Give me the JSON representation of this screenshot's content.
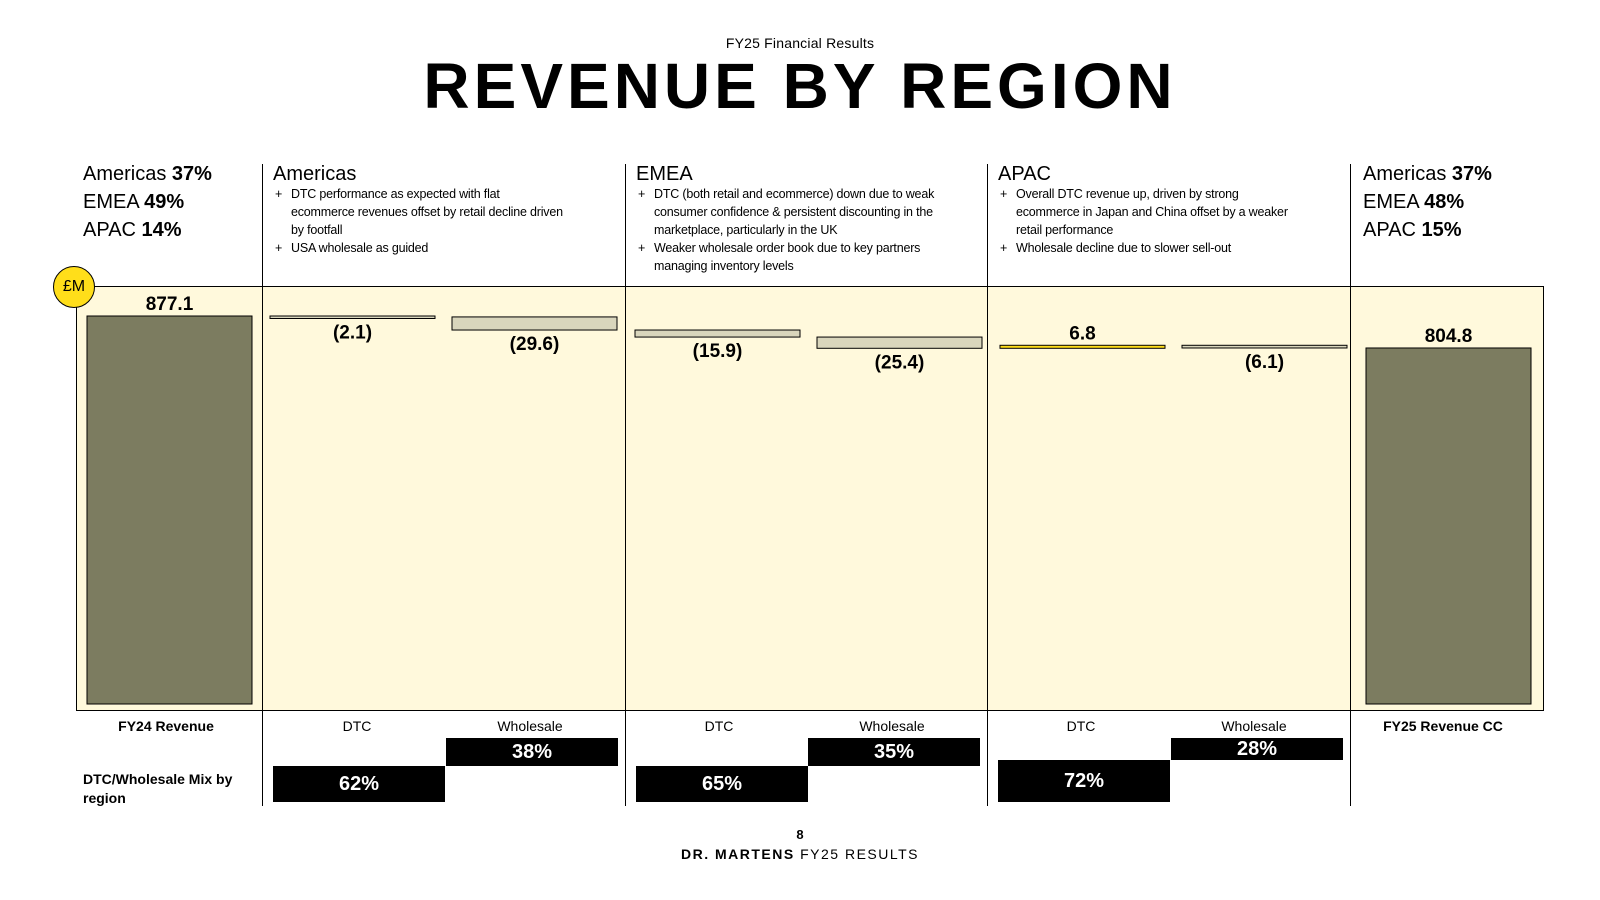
{
  "header": {
    "subtitle": "FY25 Financial Results",
    "title": "REVENUE BY REGION"
  },
  "fy24_mix": [
    {
      "region": "Americas",
      "pct": "37%"
    },
    {
      "region": "EMEA",
      "pct": "49%"
    },
    {
      "region": "APAC",
      "pct": "14%"
    }
  ],
  "fy25_mix": [
    {
      "region": "Americas",
      "pct": "37%"
    },
    {
      "region": "EMEA",
      "pct": "48%"
    },
    {
      "region": "APAC",
      "pct": "15%"
    }
  ],
  "regions": [
    {
      "name": "Americas",
      "bullets": [
        "DTC performance as expected with flat ecommerce revenues offset by retail decline driven by footfall",
        "USA wholesale as guided"
      ]
    },
    {
      "name": "EMEA",
      "bullets": [
        "DTC (both retail and ecommerce) down due to weak consumer confidence & persistent discounting in the marketplace, particularly in the UK",
        "Weaker wholesale order book due to key partners managing inventory levels"
      ]
    },
    {
      "name": "APAC",
      "bullets": [
        "Overall DTC revenue up, driven by strong ecommerce in Japan and China offset by a weaker retail performance",
        "Wholesale decline due to slower sell-out"
      ]
    }
  ],
  "unit_badge": "£M",
  "mix_label": "DTC/Wholesale Mix by region",
  "mix": [
    {
      "dtc": "62%",
      "wholesale": "38%"
    },
    {
      "dtc": "65%",
      "wholesale": "35%"
    },
    {
      "dtc": "72%",
      "wholesale": "28%"
    }
  ],
  "chart_data": {
    "type": "bar",
    "subtype": "waterfall",
    "unit": "£M",
    "categories": [
      "FY24 Revenue",
      "DTC",
      "Wholesale",
      "DTC",
      "Wholesale",
      "DTC",
      "Wholesale",
      "FY25 Revenue CC"
    ],
    "groups": [
      "",
      "Americas",
      "Americas",
      "EMEA",
      "EMEA",
      "APAC",
      "APAC",
      ""
    ],
    "values": [
      877.1,
      -2.1,
      -29.6,
      -15.9,
      -25.4,
      6.8,
      -6.1,
      804.8
    ],
    "labels": [
      "877.1",
      "(2.1)",
      "(29.6)",
      "(15.9)",
      "(25.4)",
      "6.8",
      "(6.1)",
      "804.8"
    ],
    "measure": [
      "total",
      "relative",
      "relative",
      "relative",
      "relative",
      "relative",
      "relative",
      "total"
    ],
    "colors": {
      "total": "#7c7c60",
      "decrease": "#d9d6bc",
      "increase": "#ffde1a",
      "panel": "#fff9dc"
    }
  },
  "page": {
    "number": "8",
    "brand": "DR. MARTENS",
    "doc": "FY25 RESULTS"
  }
}
